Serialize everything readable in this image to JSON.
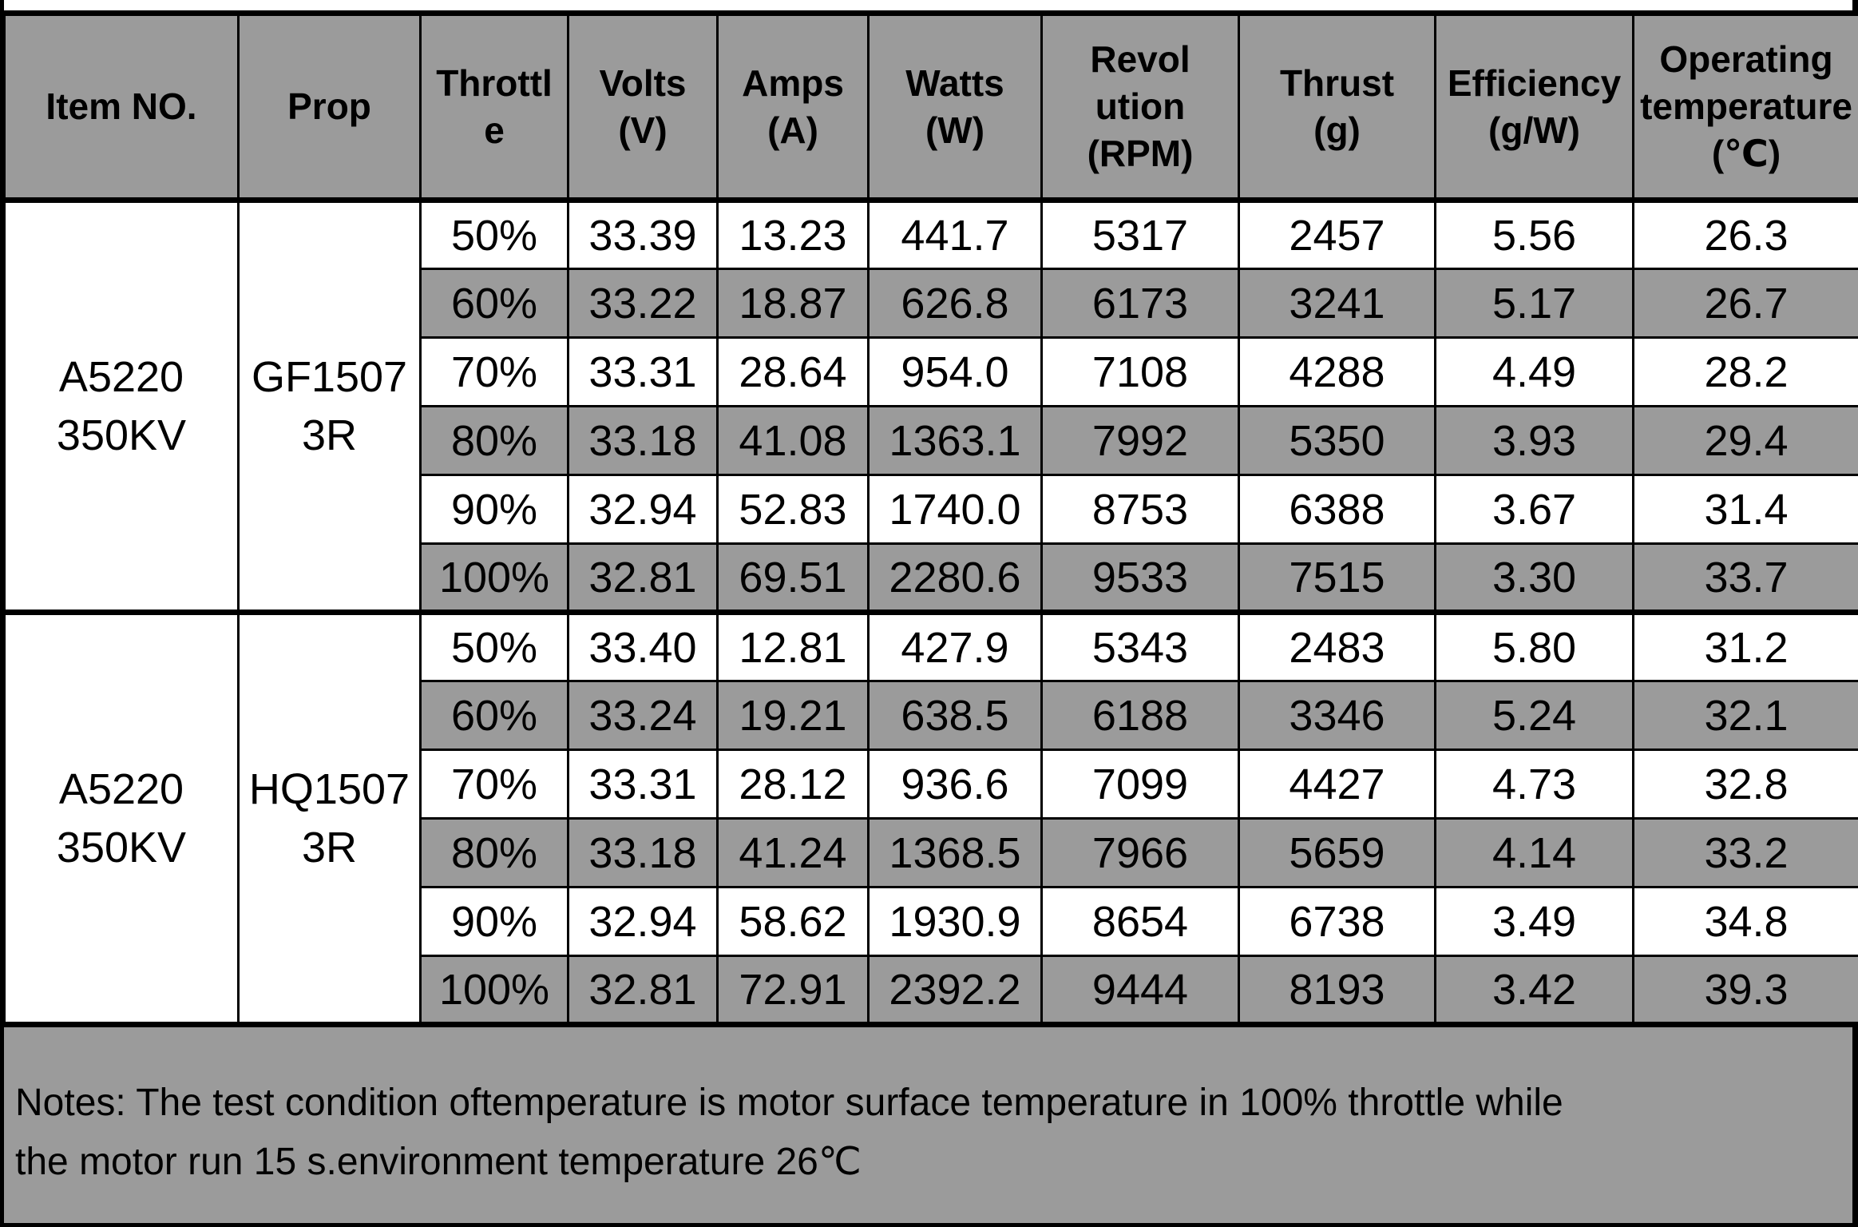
{
  "table": {
    "columns": [
      "Item NO.",
      "Prop",
      "Throttl\ne",
      "Volts\n(V)",
      "Amps\n(A)",
      "Watts\n(W)",
      "Revol\nution\n(RPM)",
      "Thrust\n(g)",
      "Efficiency\n(g/W)",
      "Operating\ntemperature\n(℃)"
    ],
    "groups": [
      {
        "item_no": "A5220\n350KV",
        "prop": "GF1507\n3R",
        "rows": [
          {
            "throttle": "50%",
            "volts": "33.39",
            "amps": "13.23",
            "watts": "441.7",
            "rpm": "5317",
            "thrust": "2457",
            "efficiency": "5.56",
            "temp": "26.3"
          },
          {
            "throttle": "60%",
            "volts": "33.22",
            "amps": "18.87",
            "watts": "626.8",
            "rpm": "6173",
            "thrust": "3241",
            "efficiency": "5.17",
            "temp": "26.7"
          },
          {
            "throttle": "70%",
            "volts": "33.31",
            "amps": "28.64",
            "watts": "954.0",
            "rpm": "7108",
            "thrust": "4288",
            "efficiency": "4.49",
            "temp": "28.2"
          },
          {
            "throttle": "80%",
            "volts": "33.18",
            "amps": "41.08",
            "watts": "1363.1",
            "rpm": "7992",
            "thrust": "5350",
            "efficiency": "3.93",
            "temp": "29.4"
          },
          {
            "throttle": "90%",
            "volts": "32.94",
            "amps": "52.83",
            "watts": "1740.0",
            "rpm": "8753",
            "thrust": "6388",
            "efficiency": "3.67",
            "temp": "31.4"
          },
          {
            "throttle": "100%",
            "volts": "32.81",
            "amps": "69.51",
            "watts": "2280.6",
            "rpm": "9533",
            "thrust": "7515",
            "efficiency": "3.30",
            "temp": "33.7"
          }
        ]
      },
      {
        "item_no": "A5220\n350KV",
        "prop": "HQ1507\n3R",
        "rows": [
          {
            "throttle": "50%",
            "volts": "33.40",
            "amps": "12.81",
            "watts": "427.9",
            "rpm": "5343",
            "thrust": "2483",
            "efficiency": "5.80",
            "temp": "31.2"
          },
          {
            "throttle": "60%",
            "volts": "33.24",
            "amps": "19.21",
            "watts": "638.5",
            "rpm": "6188",
            "thrust": "3346",
            "efficiency": "5.24",
            "temp": "32.1"
          },
          {
            "throttle": "70%",
            "volts": "33.31",
            "amps": "28.12",
            "watts": "936.6",
            "rpm": "7099",
            "thrust": "4427",
            "efficiency": "4.73",
            "temp": "32.8"
          },
          {
            "throttle": "80%",
            "volts": "33.18",
            "amps": "41.24",
            "watts": "1368.5",
            "rpm": "7966",
            "thrust": "5659",
            "efficiency": "4.14",
            "temp": "33.2"
          },
          {
            "throttle": "90%",
            "volts": "32.94",
            "amps": "58.62",
            "watts": "1930.9",
            "rpm": "8654",
            "thrust": "6738",
            "efficiency": "3.49",
            "temp": "34.8"
          },
          {
            "throttle": "100%",
            "volts": "32.81",
            "amps": "72.91",
            "watts": "2392.2",
            "rpm": "9444",
            "thrust": "8193",
            "efficiency": "3.42",
            "temp": "39.3"
          }
        ]
      }
    ],
    "notes": "Notes: The test condition oftemperature is motor surface temperature in 100% throttle while\nthe motor run 15 s.environment temperature 26℃"
  },
  "colors": {
    "gray": "#9b9b9b",
    "border": "#000000",
    "row_white": "#ffffff"
  }
}
